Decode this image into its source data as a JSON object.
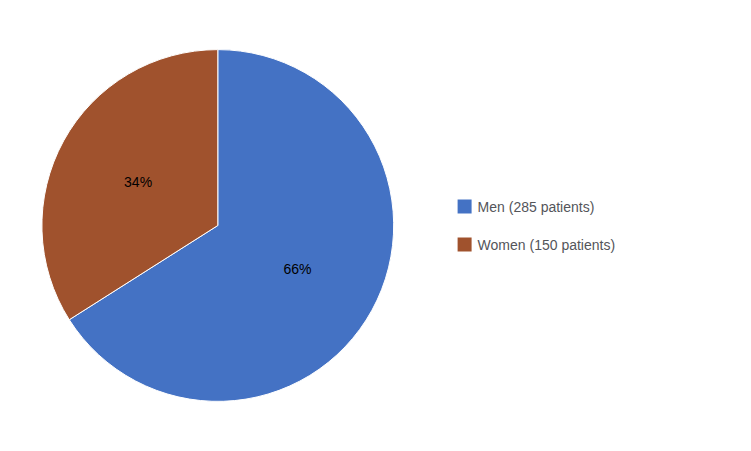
{
  "chart_data": {
    "type": "pie",
    "categories": [
      "Men (285 patients)",
      "Women (150 patients)"
    ],
    "values": [
      66,
      34
    ],
    "value_labels": [
      "66%",
      "34%"
    ],
    "colors": [
      "#4472C4",
      "#A0522D"
    ],
    "data_labels": true,
    "legend": "right"
  }
}
